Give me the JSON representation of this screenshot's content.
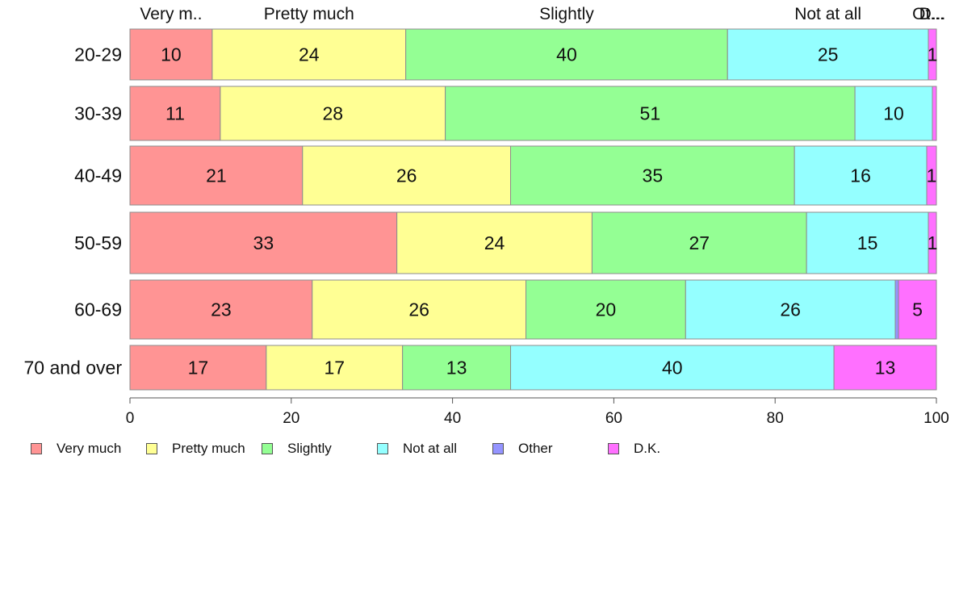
{
  "chart_data": {
    "type": "bar",
    "orientation": "horizontal",
    "stacked": true,
    "categories": [
      "20-29",
      "30-39",
      "40-49",
      "50-59",
      "60-69",
      "70 and over"
    ],
    "series": [
      {
        "name": "Very much",
        "color": "#ff9494",
        "values": [
          10.2,
          11.2,
          21.4,
          33.1,
          22.6,
          16.9
        ]
      },
      {
        "name": "Pretty much",
        "color": "#ffff94",
        "values": [
          24.0,
          27.9,
          25.8,
          24.2,
          26.5,
          16.9
        ]
      },
      {
        "name": "Slightly",
        "color": "#94ff94",
        "values": [
          39.9,
          50.8,
          35.2,
          26.6,
          19.8,
          13.4
        ]
      },
      {
        "name": "Not at all",
        "color": "#94ffff",
        "values": [
          24.9,
          9.6,
          16.4,
          15.1,
          26.0,
          40.1
        ]
      },
      {
        "name": "Other",
        "color": "#9494ff",
        "values": [
          0.0,
          0.0,
          0.0,
          0.0,
          0.4,
          0.0
        ]
      },
      {
        "name": "D.K.",
        "color": "#ff70ff",
        "values": [
          1.0,
          0.5,
          1.2,
          1.0,
          4.7,
          12.7
        ]
      }
    ],
    "data_labels": [
      [
        "10",
        "24",
        "40",
        "25",
        "",
        "1"
      ],
      [
        "11",
        "28",
        "51",
        "10",
        "",
        ""
      ],
      [
        "21",
        "26",
        "35",
        "16",
        "",
        "1"
      ],
      [
        "33",
        "24",
        "27",
        "15",
        "",
        "1"
      ],
      [
        "23",
        "26",
        "20",
        "26",
        "",
        "5"
      ],
      [
        "17",
        "17",
        "13",
        "40",
        "",
        "13"
      ]
    ],
    "top_labels": [
      "Very m..",
      "Pretty much",
      "Slightly",
      "Not at all",
      "Ot...",
      "D..."
    ],
    "xlim": [
      0,
      100
    ],
    "xticks": [
      "0",
      "20",
      "40",
      "60",
      "80",
      "100"
    ],
    "legend_position": "bottom",
    "grid": false
  }
}
